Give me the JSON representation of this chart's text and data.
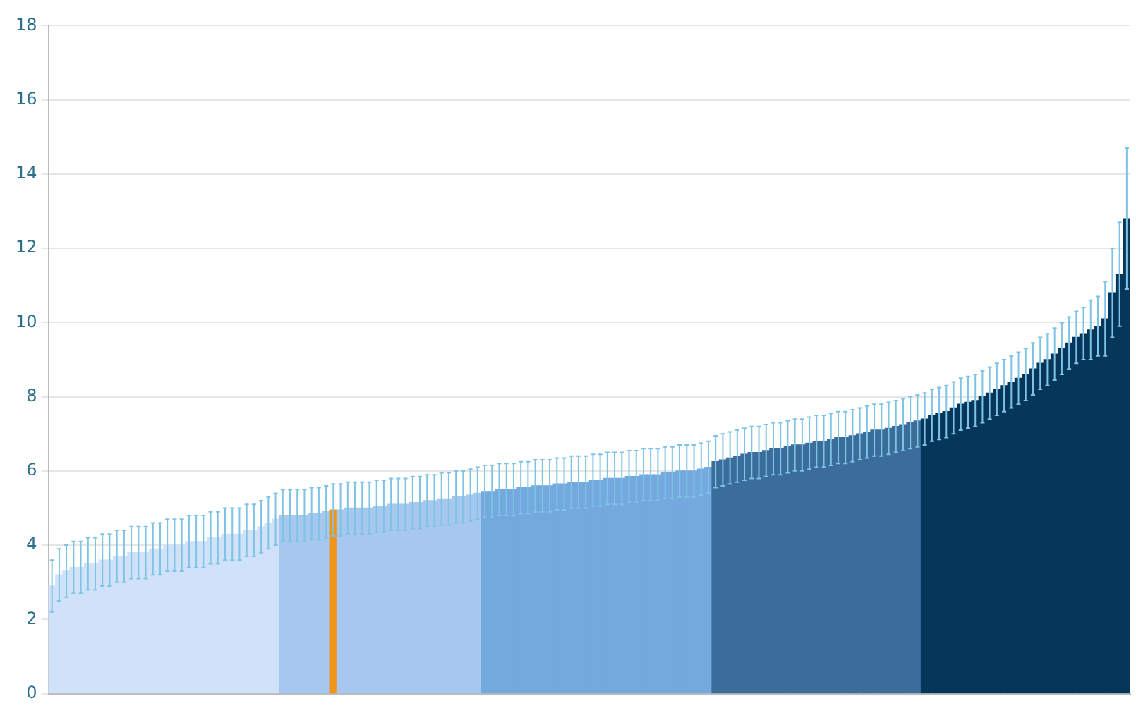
{
  "chart_data": {
    "type": "bar",
    "categories": [
      null,
      null,
      null,
      null,
      null,
      null,
      null,
      null,
      null,
      null,
      null,
      null,
      null,
      null,
      null,
      null,
      null,
      null,
      null,
      null,
      null,
      null,
      null,
      null,
      null,
      null,
      null,
      null,
      null,
      null,
      null,
      null,
      null,
      null,
      null,
      null,
      null,
      null,
      null,
      null,
      null,
      null,
      null,
      null,
      null,
      null,
      null,
      null,
      null,
      null,
      null,
      null,
      null,
      null,
      null,
      null,
      null,
      null,
      null,
      null,
      null,
      null,
      null,
      null,
      null,
      null,
      null,
      null,
      null,
      null,
      null,
      null,
      null,
      null,
      null,
      null,
      null,
      null,
      null,
      null,
      null,
      null,
      null,
      null,
      null,
      null,
      null,
      null,
      null,
      null,
      null,
      null,
      null,
      null,
      null,
      null,
      null,
      null,
      null,
      null,
      null,
      null,
      null,
      null,
      null,
      null,
      null,
      null,
      null,
      null,
      null,
      null,
      null,
      null,
      null,
      null,
      null,
      null,
      null,
      null,
      null,
      null,
      null,
      null,
      null,
      null,
      null,
      null,
      null,
      null,
      null,
      null,
      null,
      null,
      null,
      null,
      null,
      null,
      null,
      null,
      null,
      null,
      null,
      null,
      null,
      null,
      null,
      null,
      null,
      null
    ],
    "values": [
      2.9,
      3.2,
      3.3,
      3.4,
      3.4,
      3.5,
      3.5,
      3.6,
      3.6,
      3.7,
      3.7,
      3.8,
      3.8,
      3.8,
      3.9,
      3.9,
      4.0,
      4.0,
      4.0,
      4.1,
      4.1,
      4.1,
      4.2,
      4.2,
      4.3,
      4.3,
      4.3,
      4.4,
      4.4,
      4.5,
      4.6,
      4.7,
      4.8,
      4.8,
      4.8,
      4.8,
      4.85,
      4.85,
      4.9,
      4.95,
      4.95,
      5.0,
      5.0,
      5.0,
      5.0,
      5.05,
      5.05,
      5.1,
      5.1,
      5.1,
      5.15,
      5.15,
      5.2,
      5.2,
      5.25,
      5.25,
      5.3,
      5.3,
      5.35,
      5.4,
      5.45,
      5.45,
      5.5,
      5.5,
      5.5,
      5.55,
      5.55,
      5.6,
      5.6,
      5.6,
      5.65,
      5.65,
      5.7,
      5.7,
      5.7,
      5.75,
      5.75,
      5.8,
      5.8,
      5.8,
      5.85,
      5.85,
      5.9,
      5.9,
      5.9,
      5.95,
      5.95,
      6.0,
      6.0,
      6.0,
      6.05,
      6.1,
      6.25,
      6.3,
      6.35,
      6.4,
      6.45,
      6.5,
      6.5,
      6.55,
      6.6,
      6.6,
      6.65,
      6.7,
      6.7,
      6.75,
      6.8,
      6.8,
      6.85,
      6.9,
      6.9,
      6.95,
      7.0,
      7.05,
      7.1,
      7.1,
      7.15,
      7.2,
      7.25,
      7.3,
      7.35,
      7.4,
      7.5,
      7.55,
      7.6,
      7.7,
      7.8,
      7.85,
      7.9,
      8.0,
      8.1,
      8.2,
      8.3,
      8.4,
      8.5,
      8.6,
      8.75,
      8.9,
      9.0,
      9.15,
      9.3,
      9.45,
      9.6,
      9.7,
      9.8,
      9.9,
      10.1,
      10.8,
      11.3,
      12.8
    ],
    "errors": [
      0.7,
      0.7,
      0.7,
      0.7,
      0.7,
      0.7,
      0.7,
      0.7,
      0.7,
      0.7,
      0.7,
      0.7,
      0.7,
      0.7,
      0.7,
      0.7,
      0.7,
      0.7,
      0.7,
      0.7,
      0.7,
      0.7,
      0.7,
      0.7,
      0.7,
      0.7,
      0.7,
      0.7,
      0.7,
      0.7,
      0.7,
      0.7,
      0.7,
      0.7,
      0.7,
      0.7,
      0.7,
      0.7,
      0.7,
      0.7,
      0.7,
      0.7,
      0.7,
      0.7,
      0.7,
      0.7,
      0.7,
      0.7,
      0.7,
      0.7,
      0.7,
      0.7,
      0.7,
      0.7,
      0.7,
      0.7,
      0.7,
      0.7,
      0.7,
      0.7,
      0.7,
      0.7,
      0.7,
      0.7,
      0.7,
      0.7,
      0.7,
      0.7,
      0.7,
      0.7,
      0.7,
      0.7,
      0.7,
      0.7,
      0.7,
      0.7,
      0.7,
      0.7,
      0.7,
      0.7,
      0.7,
      0.7,
      0.7,
      0.7,
      0.7,
      0.7,
      0.7,
      0.7,
      0.7,
      0.7,
      0.7,
      0.7,
      0.7,
      0.7,
      0.7,
      0.7,
      0.7,
      0.7,
      0.7,
      0.7,
      0.7,
      0.7,
      0.7,
      0.7,
      0.7,
      0.7,
      0.7,
      0.7,
      0.7,
      0.7,
      0.7,
      0.7,
      0.7,
      0.7,
      0.7,
      0.7,
      0.7,
      0.7,
      0.7,
      0.7,
      0.7,
      0.7,
      0.7,
      0.7,
      0.7,
      0.7,
      0.7,
      0.7,
      0.7,
      0.7,
      0.7,
      0.7,
      0.7,
      0.7,
      0.7,
      0.7,
      0.7,
      0.7,
      0.7,
      0.7,
      0.7,
      0.7,
      0.7,
      0.7,
      0.8,
      0.8,
      1.0,
      1.2,
      1.4,
      1.9
    ],
    "colors": [
      "#cfe2f9",
      "#cfe2f9",
      "#cfe2f9",
      "#cfe2f9",
      "#cfe2f9",
      "#cfe2f9",
      "#cfe2f9",
      "#cfe2f9",
      "#cfe2f9",
      "#cfe2f9",
      "#cfe2f9",
      "#cfe2f9",
      "#cfe2f9",
      "#cfe2f9",
      "#cfe2f9",
      "#cfe2f9",
      "#cfe2f9",
      "#cfe2f9",
      "#cfe2f9",
      "#cfe2f9",
      "#cfe2f9",
      "#cfe2f9",
      "#cfe2f9",
      "#cfe2f9",
      "#cfe2f9",
      "#cfe2f9",
      "#cfe2f9",
      "#cfe2f9",
      "#cfe2f9",
      "#cfe2f9",
      "#cfe2f9",
      "#cfe2f9",
      "#a6c8ee",
      "#a6c8ee",
      "#a6c8ee",
      "#a6c8ee",
      "#a6c8ee",
      "#a6c8ee",
      "#a6c8ee",
      "#f0951a",
      "#a6c8ee",
      "#a6c8ee",
      "#a6c8ee",
      "#a6c8ee",
      "#a6c8ee",
      "#a6c8ee",
      "#a6c8ee",
      "#a6c8ee",
      "#a6c8ee",
      "#a6c8ee",
      "#a6c8ee",
      "#a6c8ee",
      "#a6c8ee",
      "#a6c8ee",
      "#a6c8ee",
      "#a6c8ee",
      "#a6c8ee",
      "#a6c8ee",
      "#a6c8ee",
      "#a6c8ee",
      "#74a9de",
      "#74a9de",
      "#74a9de",
      "#74a9de",
      "#74a9de",
      "#74a9de",
      "#74a9de",
      "#74a9de",
      "#74a9de",
      "#74a9de",
      "#74a9de",
      "#74a9de",
      "#74a9de",
      "#74a9de",
      "#74a9de",
      "#74a9de",
      "#74a9de",
      "#74a9de",
      "#74a9de",
      "#74a9de",
      "#74a9de",
      "#74a9de",
      "#74a9de",
      "#74a9de",
      "#74a9de",
      "#74a9de",
      "#74a9de",
      "#74a9de",
      "#74a9de",
      "#74a9de",
      "#74a9de",
      "#74a9de",
      "#3b6d9b",
      "#3b6d9b",
      "#3b6d9b",
      "#3b6d9b",
      "#3b6d9b",
      "#3b6d9b",
      "#3b6d9b",
      "#3b6d9b",
      "#3b6d9b",
      "#3b6d9b",
      "#3b6d9b",
      "#3b6d9b",
      "#3b6d9b",
      "#3b6d9b",
      "#3b6d9b",
      "#3b6d9b",
      "#3b6d9b",
      "#3b6d9b",
      "#3b6d9b",
      "#3b6d9b",
      "#3b6d9b",
      "#3b6d9b",
      "#3b6d9b",
      "#3b6d9b",
      "#3b6d9b",
      "#3b6d9b",
      "#3b6d9b",
      "#3b6d9b",
      "#3b6d9b",
      "#06365a",
      "#06365a",
      "#06365a",
      "#06365a",
      "#06365a",
      "#06365a",
      "#06365a",
      "#06365a",
      "#06365a",
      "#06365a",
      "#06365a",
      "#06365a",
      "#06365a",
      "#06365a",
      "#06365a",
      "#06365a",
      "#06365a",
      "#06365a",
      "#06365a",
      "#06365a",
      "#06365a",
      "#06365a",
      "#06365a",
      "#06365a",
      "#06365a",
      "#06365a",
      "#06365a",
      "#06365a",
      "#06365a"
    ],
    "ylim": [
      0,
      18
    ],
    "yticks": [
      0,
      2,
      4,
      6,
      8,
      10,
      12,
      14,
      16,
      18
    ],
    "grid": "y",
    "tick_labels": "y"
  }
}
